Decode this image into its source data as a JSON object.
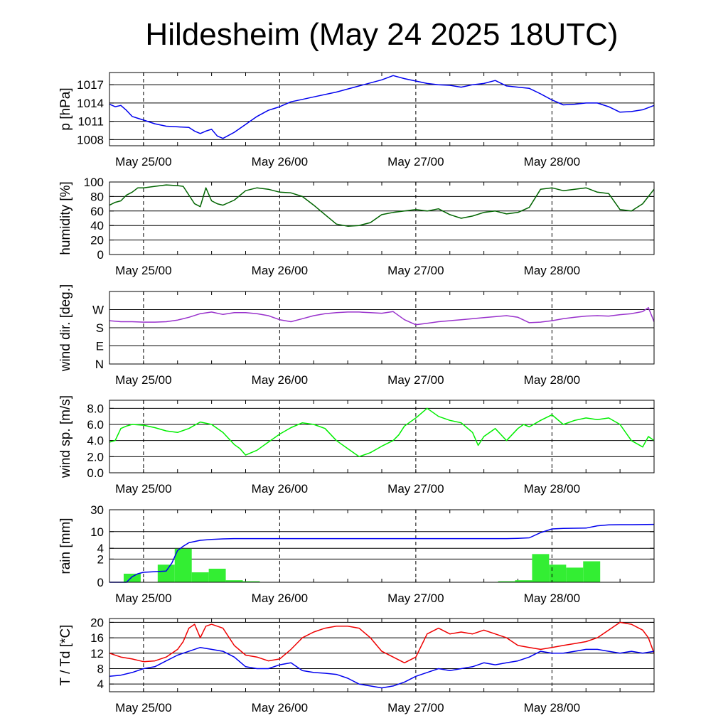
{
  "title": "Hildesheim (May 24 2025 18UTC)",
  "x_tick_labels": [
    "May 25/00",
    "May 26/00",
    "May 27/00",
    "May 28/00"
  ],
  "chart_data": [
    {
      "type": "line",
      "ylabel": "p [hPa]",
      "ylim": [
        1007,
        1019
      ],
      "yticks": [
        1008,
        1011,
        1014,
        1017
      ],
      "ytick_labels": [
        "1008",
        "1011",
        "1014",
        "1017"
      ],
      "x_unit": "hours since May 24 18UTC",
      "xlim": [
        0,
        96
      ],
      "series": [
        {
          "color": "#0000ee",
          "x": [
            0,
            1,
            2,
            3,
            4,
            5,
            6,
            8,
            10,
            12,
            14,
            15,
            16,
            17,
            18,
            19,
            20,
            22,
            24,
            26,
            28,
            30,
            32,
            34,
            36,
            40,
            44,
            48,
            50,
            52,
            54,
            56,
            58,
            60,
            62,
            64,
            66,
            68,
            70,
            72,
            74,
            76,
            78,
            80,
            82,
            84,
            86,
            88,
            90,
            92,
            94,
            96
          ],
          "y": [
            1013.8,
            1013.4,
            1013.6,
            1012.8,
            1011.8,
            1011.5,
            1011.2,
            1010.6,
            1010.2,
            1010.1,
            1010.0,
            1009.4,
            1009.0,
            1009.4,
            1009.7,
            1008.6,
            1008.2,
            1009.2,
            1010.5,
            1011.8,
            1012.8,
            1013.4,
            1014.2,
            1014.6,
            1015.0,
            1015.8,
            1016.8,
            1017.8,
            1018.5,
            1018.0,
            1017.6,
            1017.2,
            1017.0,
            1016.9,
            1016.6,
            1017.0,
            1017.2,
            1017.7,
            1016.8,
            1016.6,
            1016.4,
            1015.5,
            1014.5,
            1013.7,
            1013.8,
            1014.0,
            1014.0,
            1013.4,
            1012.5,
            1012.6,
            1012.9,
            1013.6
          ]
        }
      ]
    },
    {
      "type": "line",
      "ylabel": "humidity [%]",
      "ylim": [
        0,
        100
      ],
      "yticks": [
        0,
        20,
        40,
        60,
        80,
        100
      ],
      "ytick_labels": [
        "0",
        "20",
        "40",
        "60",
        "80",
        "100"
      ],
      "xlim": [
        0,
        96
      ],
      "series": [
        {
          "color": "#006400",
          "x": [
            0,
            1,
            2,
            3,
            4,
            5,
            6,
            8,
            10,
            12,
            13,
            14,
            15,
            16,
            17,
            18,
            19,
            20,
            22,
            24,
            26,
            28,
            30,
            32,
            34,
            36,
            38,
            40,
            42,
            44,
            46,
            48,
            50,
            52,
            54,
            56,
            58,
            60,
            62,
            64,
            66,
            68,
            70,
            72,
            74,
            76,
            78,
            80,
            82,
            84,
            86,
            88,
            90,
            92,
            94,
            96
          ],
          "y": [
            68,
            72,
            74,
            82,
            86,
            92,
            92,
            94,
            96,
            95,
            94,
            82,
            70,
            66,
            92,
            74,
            70,
            68,
            75,
            88,
            92,
            90,
            86,
            85,
            80,
            68,
            55,
            42,
            39,
            40,
            44,
            55,
            58,
            60,
            62,
            60,
            63,
            55,
            50,
            53,
            58,
            60,
            56,
            58,
            65,
            90,
            92,
            88,
            90,
            92,
            86,
            84,
            62,
            60,
            70,
            90
          ]
        }
      ]
    },
    {
      "type": "line",
      "ylabel": "wind dir. [deg.]",
      "ylim": [
        0,
        360
      ],
      "yticks": [
        0,
        90,
        180,
        270
      ],
      "ytick_labels": [
        "N",
        "E",
        "S",
        "W"
      ],
      "xlim": [
        0,
        96
      ],
      "series": [
        {
          "color": "#9932cc",
          "x": [
            0,
            2,
            4,
            6,
            8,
            10,
            12,
            14,
            16,
            18,
            20,
            22,
            24,
            26,
            28,
            30,
            32,
            34,
            36,
            38,
            40,
            42,
            44,
            46,
            48,
            50,
            52,
            54,
            56,
            58,
            60,
            62,
            64,
            66,
            68,
            70,
            72,
            74,
            76,
            78,
            80,
            82,
            84,
            86,
            88,
            90,
            92,
            94,
            95,
            96
          ],
          "y": [
            215,
            210,
            210,
            208,
            208,
            210,
            218,
            232,
            250,
            258,
            246,
            255,
            255,
            250,
            240,
            220,
            210,
            225,
            240,
            250,
            255,
            258,
            258,
            255,
            252,
            260,
            220,
            195,
            202,
            210,
            215,
            220,
            225,
            230,
            235,
            240,
            232,
            205,
            208,
            215,
            225,
            232,
            238,
            240,
            238,
            245,
            250,
            260,
            280,
            210
          ]
        }
      ]
    },
    {
      "type": "line",
      "ylabel": "wind sp. [m/s]",
      "ylim": [
        0,
        9
      ],
      "yticks": [
        0,
        2,
        4,
        6,
        8
      ],
      "ytick_labels": [
        "0.0",
        "2.0",
        "4.0",
        "6.0",
        "8.0"
      ],
      "xlim": [
        0,
        96
      ],
      "series": [
        {
          "color": "#00ee00",
          "x": [
            0,
            1,
            2,
            3,
            4,
            6,
            8,
            10,
            12,
            14,
            16,
            18,
            20,
            22,
            23,
            24,
            26,
            28,
            30,
            32,
            34,
            36,
            38,
            40,
            42,
            44,
            46,
            48,
            50,
            51,
            52,
            54,
            56,
            58,
            60,
            62,
            64,
            65,
            66,
            68,
            70,
            72,
            73,
            74,
            76,
            78,
            80,
            82,
            84,
            86,
            88,
            90,
            92,
            94,
            95,
            96
          ],
          "y": [
            3.8,
            4.0,
            5.5,
            5.8,
            6.0,
            5.9,
            5.6,
            5.2,
            5.0,
            5.5,
            6.3,
            6.0,
            5.0,
            3.5,
            3.0,
            2.2,
            2.8,
            3.8,
            4.8,
            5.6,
            6.2,
            6.0,
            5.5,
            4.0,
            3.0,
            2.0,
            2.5,
            3.3,
            4.0,
            4.7,
            5.8,
            6.8,
            8.0,
            7.0,
            6.5,
            6.2,
            5.0,
            3.4,
            4.5,
            5.5,
            4.0,
            5.5,
            6.0,
            5.7,
            6.5,
            7.2,
            6.0,
            6.5,
            6.8,
            6.6,
            6.8,
            6.0,
            4.0,
            3.2,
            4.5,
            4.0
          ]
        }
      ]
    },
    {
      "type": "bar",
      "ylabel": "rain [mm]",
      "ylim": [
        0,
        30
      ],
      "yticks": [
        0,
        2,
        4,
        10,
        30
      ],
      "ytick_labels": [
        "0",
        "2",
        "4",
        "10",
        "30"
      ],
      "y_scale": "log1p",
      "xlim": [
        0,
        96
      ],
      "bars": {
        "color": "#33ee33",
        "bin_hours": 3,
        "x": [
          1,
          4,
          7,
          10,
          13,
          16,
          19,
          22,
          25,
          28,
          67,
          70,
          73,
          76,
          79,
          82,
          85
        ],
        "values": [
          0,
          0.5,
          0,
          1.3,
          3.9,
          0.6,
          0.9,
          0.1,
          0.05,
          0,
          0,
          0.05,
          0.1,
          2.8,
          1.3,
          1.0,
          1.7
        ]
      },
      "series": [
        {
          "color": "#0000ee",
          "name": "",
          "x": [
            0,
            3,
            4,
            5,
            6,
            8,
            10,
            11,
            12,
            13,
            14,
            16,
            18,
            20,
            22,
            24,
            30,
            40,
            50,
            60,
            70,
            72,
            74,
            76,
            78,
            80,
            84,
            86,
            88,
            90,
            92,
            96
          ],
          "y": [
            0,
            0,
            0.3,
            0.5,
            0.6,
            0.65,
            0.7,
            1.5,
            3.5,
            4.5,
            5.5,
            6.3,
            6.6,
            6.8,
            6.9,
            6.9,
            6.9,
            6.9,
            6.9,
            6.9,
            6.9,
            7.0,
            7.2,
            9.5,
            11.5,
            11.8,
            12.0,
            13.5,
            14.2,
            14.3,
            14.3,
            14.5
          ]
        }
      ]
    },
    {
      "type": "line",
      "ylabel": "T / Td [*C]",
      "ylim": [
        2,
        21
      ],
      "yticks": [
        4,
        8,
        12,
        16,
        20
      ],
      "ytick_labels": [
        "4",
        "8",
        "12",
        "16",
        "20"
      ],
      "xlim": [
        0,
        96
      ],
      "series": [
        {
          "color": "#ee0000",
          "name": "T",
          "x": [
            0,
            2,
            4,
            6,
            8,
            10,
            12,
            13,
            14,
            15,
            16,
            17,
            18,
            20,
            22,
            24,
            26,
            28,
            30,
            32,
            34,
            36,
            38,
            40,
            42,
            44,
            46,
            48,
            50,
            52,
            54,
            56,
            58,
            60,
            62,
            64,
            66,
            68,
            70,
            72,
            74,
            76,
            78,
            80,
            82,
            84,
            86,
            88,
            90,
            92,
            94,
            95,
            96
          ],
          "y": [
            12,
            11,
            10.5,
            9.8,
            10,
            11,
            13,
            15,
            18.5,
            19.5,
            16,
            19,
            19.5,
            18.5,
            14,
            11.5,
            11,
            10,
            10.5,
            13,
            16,
            17.5,
            18.5,
            19,
            19,
            18.5,
            16,
            12.5,
            11,
            9.5,
            11,
            17,
            18.5,
            17,
            17.5,
            17,
            18,
            17,
            16,
            14,
            13.5,
            13,
            13.5,
            14,
            14.5,
            15,
            16,
            18,
            20,
            19.5,
            18,
            16,
            12
          ]
        },
        {
          "color": "#0000ee",
          "name": "Td",
          "x": [
            0,
            2,
            4,
            6,
            8,
            10,
            12,
            14,
            16,
            18,
            20,
            22,
            24,
            26,
            28,
            30,
            32,
            34,
            36,
            38,
            40,
            42,
            44,
            46,
            48,
            50,
            52,
            54,
            56,
            58,
            60,
            62,
            64,
            66,
            68,
            70,
            72,
            74,
            76,
            78,
            80,
            82,
            84,
            86,
            88,
            90,
            92,
            94,
            96
          ],
          "y": [
            6,
            6.3,
            7,
            8,
            8.5,
            10,
            11.5,
            12.5,
            13.5,
            13,
            12.5,
            11,
            8.5,
            8,
            8,
            9,
            9.5,
            7.5,
            7,
            6.8,
            6.5,
            5.5,
            4,
            3.5,
            3,
            3.5,
            4.5,
            6,
            7,
            8,
            7.5,
            8,
            8.5,
            9.5,
            9,
            9.5,
            10,
            11,
            12.5,
            12,
            12,
            12.5,
            13,
            13,
            12.5,
            12,
            12.5,
            12,
            12.5
          ]
        }
      ]
    }
  ]
}
